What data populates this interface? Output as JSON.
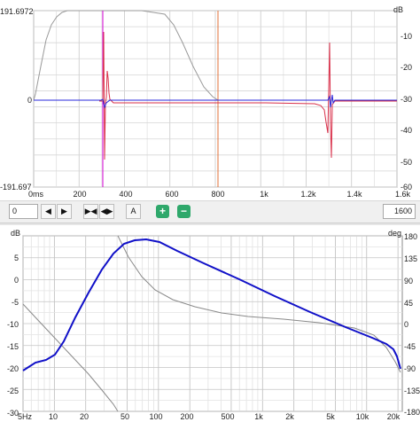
{
  "ir_plot": {
    "y_top": "191.6972",
    "y_zero": "0",
    "y_bottom": "-191.697",
    "x_ticks": [
      "0ms",
      "200",
      "400",
      "600",
      "800",
      "1k",
      "1.2k",
      "1.4k",
      "1.6k"
    ],
    "db_unit": "dB",
    "db_ticks": [
      "-10",
      "-20",
      "-30",
      "-40",
      "-50",
      "-60"
    ],
    "colors": {
      "envelope": "#9a9a9a",
      "impulse_red": "#d9304a",
      "impulse_blue": "#2a2adc",
      "marker_magenta": "#d400d4",
      "marker_orange": "#e0703a"
    }
  },
  "toolbar": {
    "offset_value": "0",
    "prev_icon": "triangle-left-icon",
    "next_icon": "triangle-right-icon",
    "collapse_icon": "collapse-icon",
    "expand_icon": "expand-icon",
    "auto_label": "A",
    "zoom_in_label": "+",
    "zoom_out_label": "−",
    "length_value": "1600"
  },
  "freq_plot": {
    "db_unit": "dB",
    "deg_unit": "deg",
    "db_ticks": [
      "5",
      "0",
      "-5",
      "-10",
      "-15",
      "-20",
      "-25",
      "-30",
      "-35"
    ],
    "deg_ticks": [
      "180",
      "135",
      "90",
      "45",
      "0",
      "-45",
      "-90",
      "-135",
      "-180"
    ],
    "freq_ticks": [
      "5Hz",
      "10",
      "20",
      "50",
      "100",
      "200",
      "500",
      "1k",
      "2k",
      "5k",
      "10k",
      "20k"
    ],
    "colors": {
      "magnitude": "#1010c8",
      "phase": "#8a8a8a"
    }
  }
}
